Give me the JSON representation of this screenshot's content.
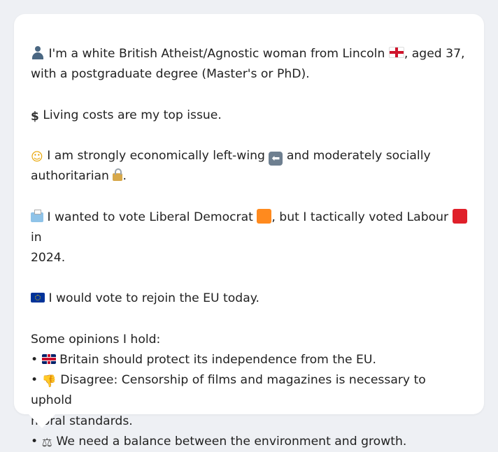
{
  "card": {
    "identity_line": "I'm a white British Atheist/Agnostic woman from Lincoln",
    "age_text": ", aged 37,",
    "education_text": "with a postgraduate degree (Master's or PhD).",
    "issue_text": "Living costs are my top issue.",
    "ideology_text_1": "I am strongly economically left-wing",
    "ideology_text_2": "and moderately socially",
    "ideology_text_3": "authoritarian",
    "ideology_text_4": ".",
    "vote_text_1": "I wanted to vote Liberal Democrat",
    "vote_text_2": ", but I tactically voted Labour",
    "vote_text_3": "in",
    "vote_text_4": "2024.",
    "eu_text": "I would vote to rejoin the EU today.",
    "opinions_heading": "Some opinions I hold:",
    "opinions": [
      {
        "bullet": "•",
        "text": "Britain should protect its independence from the EU."
      },
      {
        "bullet": "•",
        "text": "Disagree: Censorship of films and magazines is necessary to uphold"
      },
      {
        "bullet": "",
        "text": "moral standards."
      },
      {
        "bullet": "•",
        "text": "We need a balance between the environment and growth."
      }
    ]
  },
  "icons": {
    "person": "person-icon",
    "england_flag": "england-flag-icon",
    "dollar": "dollar-icon",
    "thinking": "thinking-face-icon",
    "left_arrow": "left-arrow-icon",
    "lock": "lock-icon",
    "ballot": "ballot-box-icon",
    "libdem_square": "orange-square-icon",
    "labour_square": "red-square-icon",
    "eu_flag": "eu-flag-icon",
    "uk_flag": "uk-flag-icon",
    "thumbs_down": "thumbs-down-icon",
    "scales": "balance-scale-icon"
  },
  "colors": {
    "background": "#eef0f4",
    "card": "#ffffff",
    "text": "#222222",
    "libdem": "#ff8a1e",
    "labour": "#e0202a"
  }
}
